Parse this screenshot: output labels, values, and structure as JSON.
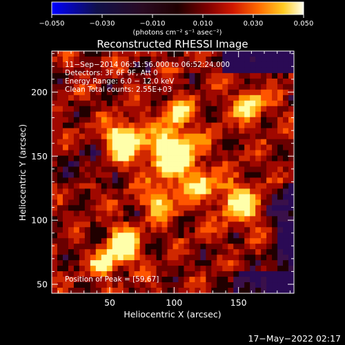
{
  "chart_data": {
    "type": "heatmap",
    "title": "Reconstructed RHESSI Image",
    "xlabel": "Heliocentric X (arcsec)",
    "ylabel": "Heliocentric Y (arcsec)",
    "xlim": [
      5,
      193
    ],
    "ylim": [
      43,
      232
    ],
    "x_ticks": [
      50,
      100,
      150
    ],
    "y_ticks": [
      50,
      100,
      150,
      200
    ],
    "colorbar": {
      "range": [
        -0.05,
        0.05
      ],
      "ticks": [
        "−0.050",
        "−0.030",
        "−0.010",
        "0.010",
        "0.030",
        "0.050"
      ],
      "unit_label": "(photons cm⁻² s⁻¹ asec⁻²)",
      "colors": [
        "#0000ff",
        "#1a0a4a",
        "#2b0a20",
        "#000000",
        "#6a0000",
        "#c01000",
        "#ff4400",
        "#ff9900",
        "#ffdd33",
        "#ffffff"
      ]
    },
    "annotations": [
      "11−Sep−2014 06:51:56.000 to 06:52:24.000",
      "Detectors: 3F 6F 9F, Att 0",
      "Energy Range: 6.0 − 12.0 keV",
      "Clean     Total counts: 2.55E+03"
    ],
    "peak_label": "Position of Peak = [59,67]",
    "peak": [
      59,
      67
    ],
    "footer_date": "17−May−2022 02:17"
  }
}
